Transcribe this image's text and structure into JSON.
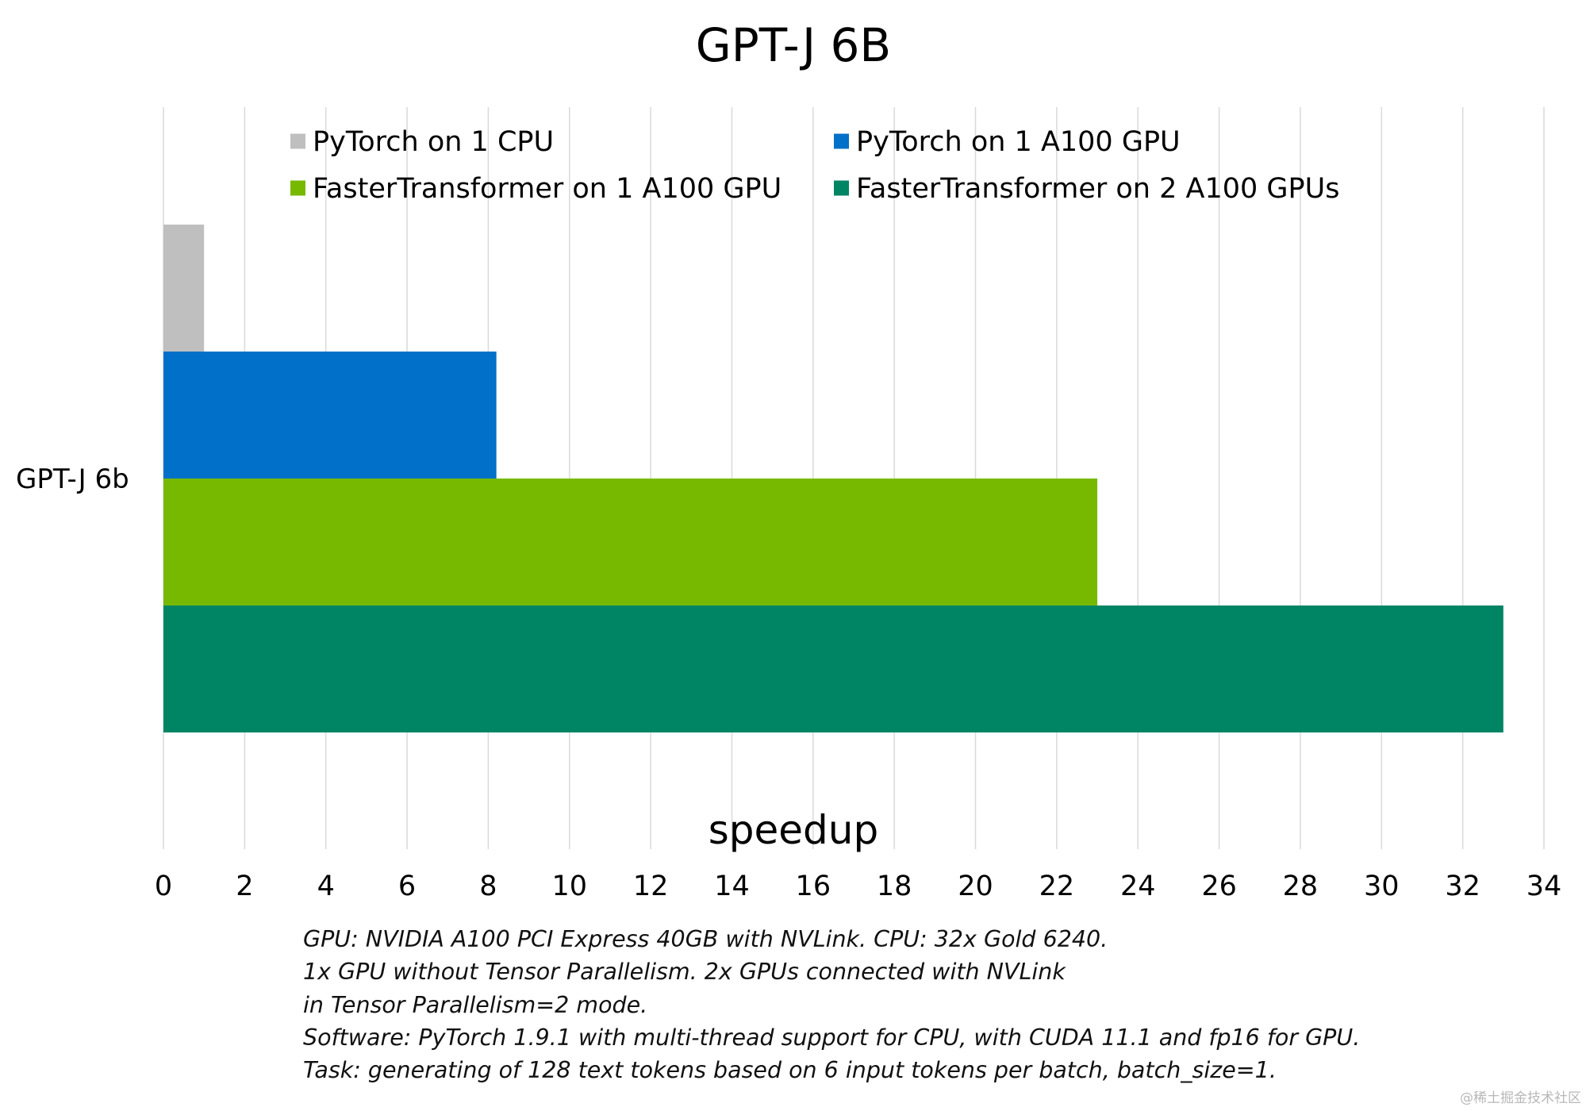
{
  "chart_data": {
    "type": "bar",
    "orientation": "horizontal",
    "title": "GPT-J 6B",
    "xlabel": "speedup",
    "ylabel": "",
    "categories": [
      "GPT-J 6b"
    ],
    "series": [
      {
        "name": "PyTorch on 1 CPU",
        "values": [
          1
        ],
        "color": "#bfbfbf"
      },
      {
        "name": "PyTorch on 1 A100 GPU",
        "values": [
          8.2
        ],
        "color": "#0070c8"
      },
      {
        "name": "FasterTransformer on 1 A100 GPU",
        "values": [
          23
        ],
        "color": "#76b900"
      },
      {
        "name": "FasterTransformer on 2 A100 GPUs",
        "values": [
          33
        ],
        "color": "#008564"
      }
    ],
    "xlim": [
      0,
      34
    ],
    "xticks": [
      "0",
      "2",
      "4",
      "6",
      "8",
      "10",
      "12",
      "14",
      "16",
      "18",
      "20",
      "22",
      "24",
      "26",
      "28",
      "30",
      "32",
      "34"
    ],
    "grid": true,
    "legend_position": "top"
  },
  "notes": [
    "GPU: NVIDIA A100 PCI Express 40GB with NVLink. CPU: 32x Gold 6240.",
    "1x GPU without Tensor Parallelism. 2x GPUs connected with NVLink",
    "in Tensor Parallelism=2 mode.",
    "Software: PyTorch 1.9.1 with multi-thread support for CPU, with CUDA 11.1 and fp16 for GPU.",
    "Task: generating of 128 text tokens based on 6 input tokens per batch, batch_size=1."
  ],
  "watermark": "@稀土掘金技术社区",
  "colors": {
    "gridline": "#d9d9d9",
    "background": "#ffffff"
  }
}
